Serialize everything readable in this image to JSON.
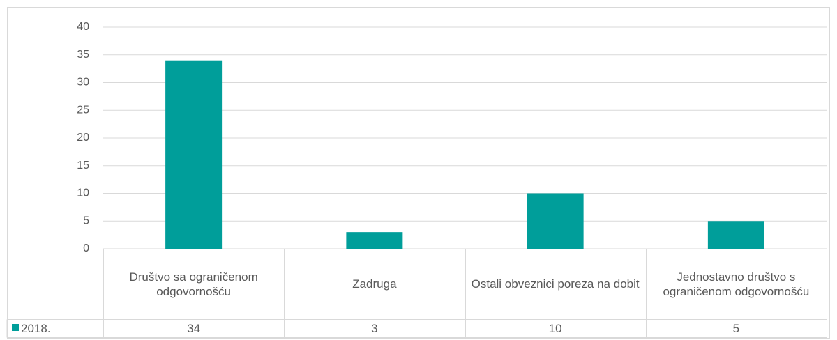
{
  "chart_data": {
    "type": "bar",
    "categories": [
      "Društvo sa ograničenom odgovornošću",
      "Zadruga",
      "Ostali obveznici poreza na dobit",
      "Jednostavno društvo s ograničenom odgovornošću"
    ],
    "series": [
      {
        "name": "2018.",
        "color": "#009e9a",
        "values": [
          34,
          3,
          10,
          5
        ]
      }
    ],
    "ylim": [
      0,
      40
    ],
    "yticks": [
      0,
      5,
      10,
      15,
      20,
      25,
      30,
      35,
      40
    ],
    "grid": true,
    "data_table": true
  }
}
